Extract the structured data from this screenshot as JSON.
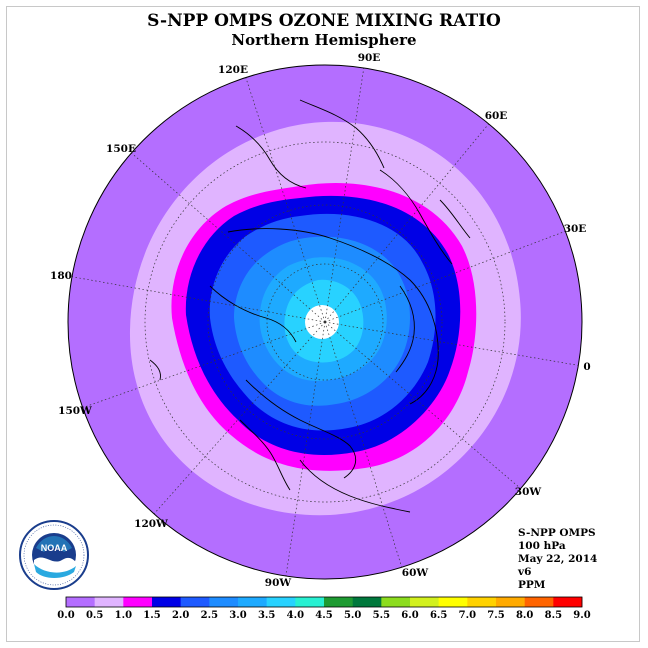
{
  "title": "S-NPP OMPS OZONE MIXING RATIO",
  "subtitle": "Northern Hemisphere",
  "longitude_labels": [
    {
      "text": "90E",
      "lon": 90
    },
    {
      "text": "60E",
      "lon": 60
    },
    {
      "text": "30E",
      "lon": 30
    },
    {
      "text": "0",
      "lon": 0
    },
    {
      "text": "30W",
      "lon": -30
    },
    {
      "text": "60W",
      "lon": -60
    },
    {
      "text": "90W",
      "lon": -90
    },
    {
      "text": "120W",
      "lon": -120
    },
    {
      "text": "150W",
      "lon": -150
    },
    {
      "text": "180",
      "lon": 180
    },
    {
      "text": "150E",
      "lon": 150
    },
    {
      "text": "120E",
      "lon": 120
    }
  ],
  "info": {
    "instrument": "S-NPP OMPS",
    "level": "100 hPa",
    "date": "May 22, 2014",
    "version": "v6",
    "units": "PPM"
  },
  "logo": {
    "text": "NOAA",
    "ring_text": "NATIONAL OCEANIC AND ATMOSPHERIC ADMINISTRATION · U.S. DEPARTMENT OF COMMERCE"
  },
  "colorbar": {
    "ticks": [
      "0.0",
      "0.5",
      "1.0",
      "1.5",
      "2.0",
      "2.5",
      "3.0",
      "3.5",
      "4.0",
      "4.5",
      "5.0",
      "5.5",
      "6.0",
      "6.5",
      "7.0",
      "7.5",
      "8.0",
      "8.5",
      "9.0"
    ],
    "colors": [
      "#b46eff",
      "#e0b4ff",
      "#ff00ff",
      "#0000e6",
      "#1e5aff",
      "#1e8cff",
      "#1eaaff",
      "#28d2ff",
      "#28f0d2",
      "#1e9b32",
      "#00783c",
      "#8cdc1e",
      "#d2f01e",
      "#ffff00",
      "#ffd200",
      "#ffaa00",
      "#ff6400",
      "#ff0000",
      "#8c5a3c"
    ]
  },
  "map_data": {
    "projection": "north-polar-stereographic",
    "field": "ozone mixing ratio",
    "contour_bands_ppm": [
      {
        "min": 0.0,
        "max": 0.5,
        "color": "#b46eff",
        "region": "tropics / outer ring"
      },
      {
        "min": 0.5,
        "max": 1.0,
        "color": "#e0b4ff",
        "region": "subtropics"
      },
      {
        "min": 1.0,
        "max": 1.5,
        "color": "#ff00ff",
        "region": "mid-latitudes"
      },
      {
        "min": 1.5,
        "max": 2.0,
        "color": "#0000e6",
        "region": "mid-latitudes"
      },
      {
        "min": 2.0,
        "max": 2.5,
        "color": "#1e5aff",
        "region": "high latitudes"
      },
      {
        "min": 2.5,
        "max": 3.0,
        "color": "#1e8cff",
        "region": "high latitudes"
      },
      {
        "min": 3.0,
        "max": 3.5,
        "color": "#1eaaff",
        "region": "polar"
      },
      {
        "min": 3.5,
        "max": 4.0,
        "color": "#28d2ff",
        "region": "polar"
      }
    ],
    "no_data_region": "pole",
    "colors": {
      "background": "#ffffff",
      "coast": "#000000",
      "no_data": "#ffffff"
    }
  }
}
